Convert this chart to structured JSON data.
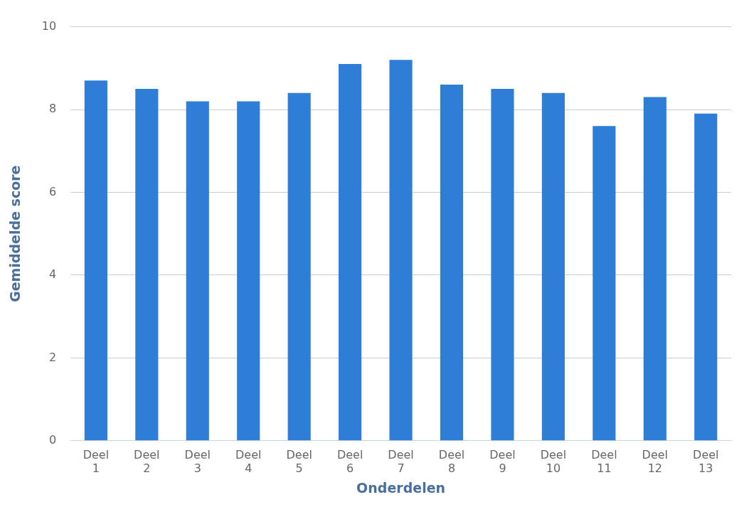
{
  "chart_data": {
    "type": "bar",
    "xlabel": "Onderdelen",
    "ylabel": "Gemiddelde score",
    "categories": [
      "Deel 1",
      "Deel 2",
      "Deel 3",
      "Deel 4",
      "Deel 5",
      "Deel 6",
      "Deel 7",
      "Deel 8",
      "Deel 9",
      "Deel 10",
      "Deel 11",
      "Deel 12",
      "Deel 13"
    ],
    "values": [
      8.7,
      8.5,
      8.2,
      8.2,
      8.4,
      9.1,
      9.2,
      8.6,
      8.5,
      8.4,
      7.6,
      8.3,
      7.9
    ],
    "color": "#2e7dd7",
    "ylim": [
      0,
      10
    ],
    "yticks": [
      0,
      2,
      4,
      6,
      8,
      10
    ],
    "grid": "y",
    "legend": false
  }
}
